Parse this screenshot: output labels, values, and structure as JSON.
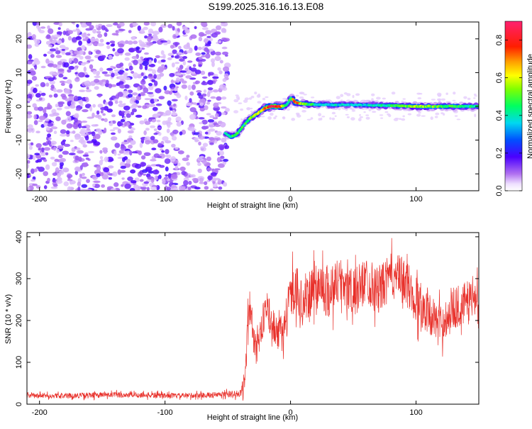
{
  "title": "S199.2025.316.16.13.E08",
  "chart_data": [
    {
      "type": "heatmap",
      "name": "spectrogram",
      "xlabel": "Height of straight line (km)",
      "ylabel": "Frequency (Hz)",
      "xlim": [
        -210,
        150
      ],
      "ylim": [
        -25,
        25
      ],
      "xticks": [
        -200,
        -100,
        0,
        100
      ],
      "yticks": [
        -20,
        -10,
        0,
        10,
        20
      ],
      "colorbar": {
        "label": "Normalized spectral amplitude",
        "range": [
          0,
          0.9
        ],
        "ticks": [
          0.0,
          0.2,
          0.4,
          0.6,
          0.8
        ]
      },
      "signal_track": {
        "x": [
          -52,
          -48,
          -44,
          -40,
          -36,
          -32,
          -28,
          -24,
          -20,
          -16,
          -12,
          -8,
          -4,
          -2,
          0,
          2,
          4,
          8,
          20,
          60,
          100,
          150
        ],
        "freq": [
          -8,
          -9,
          -8.5,
          -7,
          -5,
          -3.5,
          -2.5,
          -1.5,
          -0.5,
          0,
          0,
          0,
          0.2,
          1,
          2.5,
          2,
          1.2,
          0.8,
          0.5,
          0.4,
          0,
          0
        ],
        "amplitude": [
          0.35,
          0.45,
          0.5,
          0.45,
          0.45,
          0.5,
          0.55,
          0.6,
          0.75,
          0.8,
          0.85,
          0.8,
          0.5,
          0.45,
          0.45,
          0.7,
          0.8,
          0.6,
          0.4,
          0.35,
          0.55,
          0.4
        ]
      },
      "noise_region": {
        "x": [
          -210,
          -50
        ],
        "amplitude": [
          0.05,
          0.2
        ]
      }
    },
    {
      "type": "line",
      "name": "snr",
      "xlabel": "Height of straight line (km)",
      "ylabel": "SNR (10 * v/v)",
      "xlim": [
        -210,
        150
      ],
      "ylim": [
        0,
        410
      ],
      "xticks": [
        -200,
        -100,
        0,
        100
      ],
      "yticks": [
        0,
        100,
        200,
        300,
        400
      ],
      "color": "#e8302a",
      "series": [
        {
          "name": "SNR",
          "x": [
            -210,
            -180,
            -150,
            -120,
            -90,
            -60,
            -40,
            -36,
            -34,
            -32,
            -30,
            -25,
            -20,
            -15,
            -10,
            -5,
            0,
            5,
            10,
            20,
            30,
            40,
            50,
            60,
            70,
            80,
            90,
            100,
            110,
            120,
            130,
            140,
            150
          ],
          "y": [
            20,
            20,
            22,
            22,
            20,
            22,
            25,
            60,
            200,
            240,
            160,
            150,
            230,
            200,
            160,
            190,
            260,
            280,
            230,
            290,
            270,
            300,
            260,
            300,
            270,
            310,
            300,
            250,
            220,
            190,
            230,
            240,
            260
          ],
          "spread": [
            12,
            12,
            14,
            14,
            12,
            14,
            18,
            60,
            110,
            90,
            90,
            60,
            90,
            80,
            70,
            90,
            110,
            110,
            100,
            120,
            130,
            110,
            120,
            110,
            120,
            100,
            110,
            120,
            100,
            90,
            100,
            110,
            90
          ]
        }
      ]
    }
  ]
}
